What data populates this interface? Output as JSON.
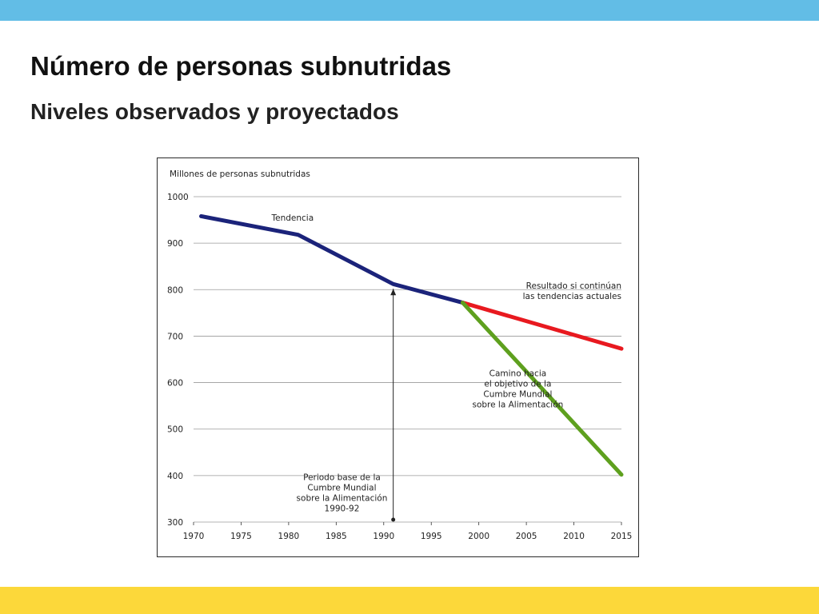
{
  "slide": {
    "title": "Número de personas subnutridas",
    "subtitle": "Niveles observados y proyectados"
  },
  "colors": {
    "top_band": "#62bde6",
    "bottom_band": "#fcd83a",
    "trend": "#1b237a",
    "current_trends": "#e8191f",
    "summit_path": "#5ea01e",
    "grid": "#9a9a9a"
  },
  "chart_data": {
    "type": "line",
    "ylabel": "Millones de personas subnutridas",
    "xlim": [
      1970,
      2015
    ],
    "ylim": [
      300,
      1000
    ],
    "x_ticks": [
      1970,
      1975,
      1980,
      1985,
      1990,
      1995,
      2000,
      2005,
      2010,
      2015
    ],
    "y_ticks": [
      300,
      400,
      500,
      600,
      700,
      800,
      900,
      1000
    ],
    "grid": "horizontal",
    "series": [
      {
        "key": "trend",
        "name": "Tendencia",
        "color": "#1b237a",
        "points": [
          [
            1970.8,
            958
          ],
          [
            1981,
            918
          ],
          [
            1991,
            812
          ],
          [
            1998.3,
            772
          ]
        ]
      },
      {
        "key": "current_trends",
        "name": "Resultado si continúan las tendencias actuales",
        "color": "#e8191f",
        "points": [
          [
            1998.3,
            772
          ],
          [
            2015,
            673
          ]
        ]
      },
      {
        "key": "summit_path",
        "name": "Camino hacia el objetivo de la Cumbre Mundial sobre la Alimentación",
        "color": "#5ea01e",
        "points": [
          [
            1998.3,
            772
          ],
          [
            2015,
            402
          ]
        ]
      }
    ],
    "annotations": {
      "trend_label": "Tendencia",
      "current_trends_label": [
        "Resultado si continúan",
        "las tendencias actuales"
      ],
      "summit_label": [
        "Camino hacia",
        "el objetivo de la",
        "Cumbre Mundial",
        "sobre la Alimentación"
      ],
      "base_period_label": [
        "Periodo base de la",
        "Cumbre Mundial",
        "sobre la Alimentación",
        "1990-92"
      ],
      "base_period_year": 1991,
      "base_period_value": 812
    }
  }
}
